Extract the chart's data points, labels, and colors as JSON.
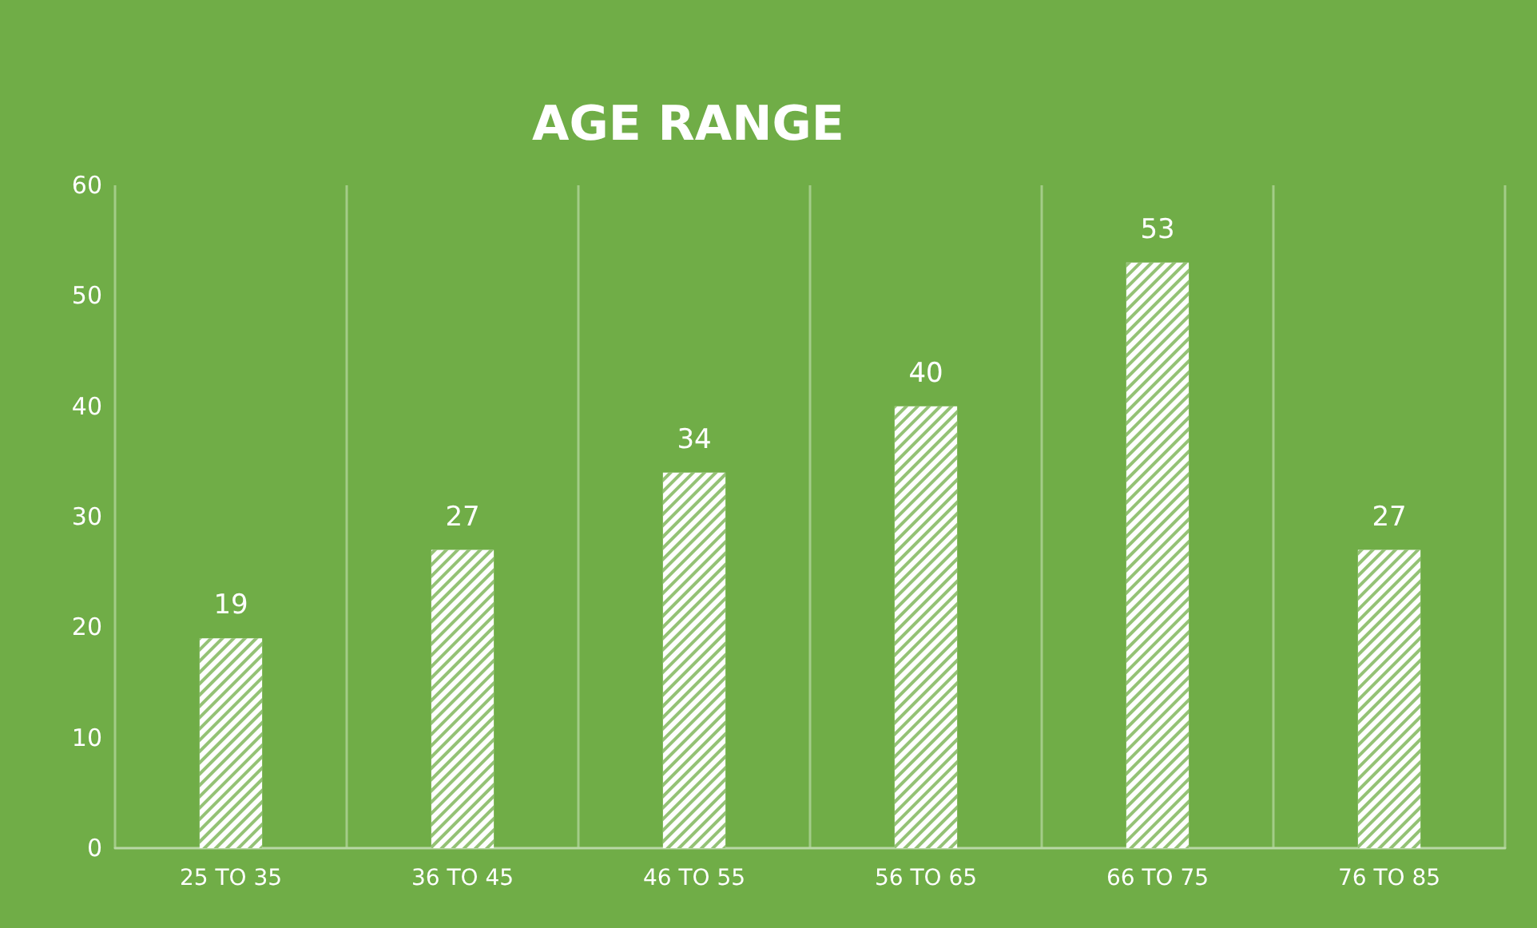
{
  "chart_data": {
    "type": "bar",
    "title": "AGE RANGE",
    "categories": [
      "25 TO 35",
      "36 TO 45",
      "46 TO 55",
      "56 TO 65",
      "66 TO 75",
      "76 TO 85"
    ],
    "values": [
      19,
      27,
      34,
      40,
      53,
      27
    ],
    "color": "#ffffff",
    "ylim": [
      0,
      60
    ],
    "yticks": [
      0,
      10,
      20,
      30,
      40,
      50,
      60
    ],
    "grid": "x",
    "data_labels": true
  }
}
